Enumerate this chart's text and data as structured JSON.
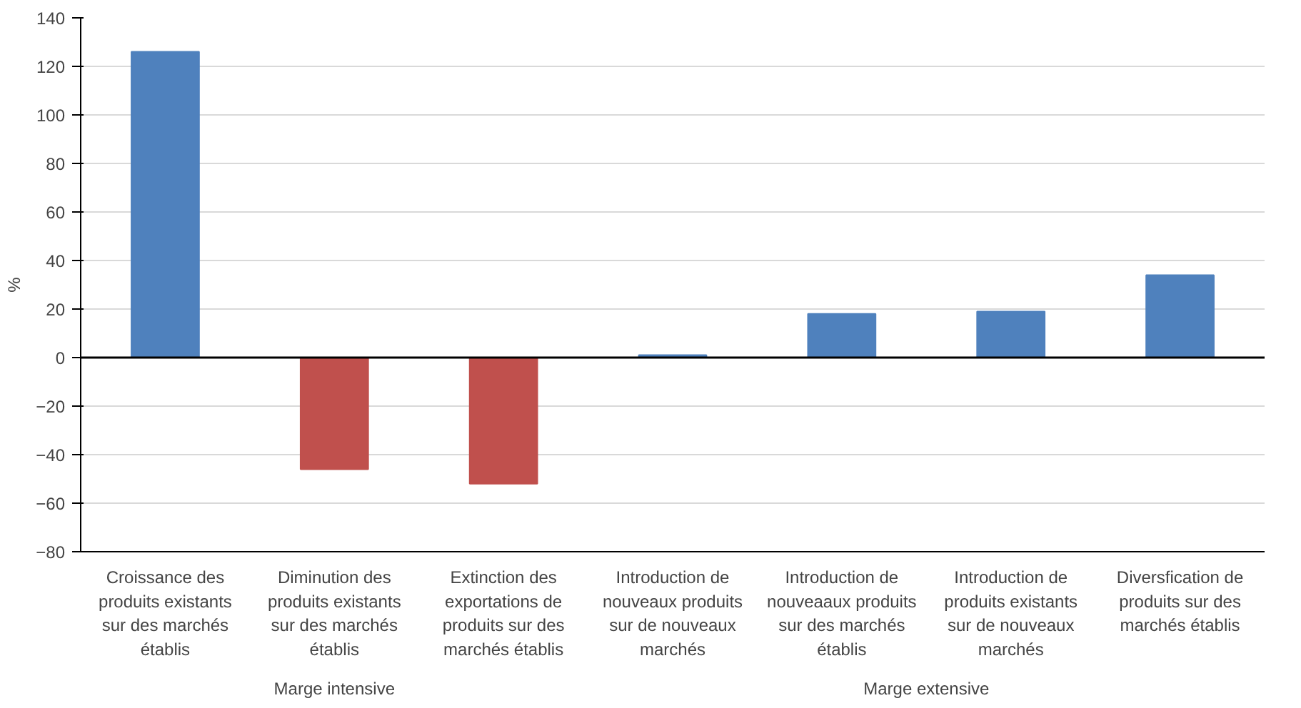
{
  "chart_data": {
    "type": "bar",
    "ylabel": "%",
    "categories": [
      "Croissance des produits existants sur des marchés établis",
      "Diminution des produits existants sur des marchés établis",
      "Extinction des exportations de produits sur des marchés établis",
      "Introduction de nouveaux produits sur de nouveaux marchés",
      "Introduction de nouveaaux produits sur des marchés établis",
      "Introduction de produits existants sur de nouveaux marchés",
      "Diversfication de produits sur des marchés établis"
    ],
    "values": [
      126,
      -46,
      -52,
      1,
      18,
      19,
      34
    ],
    "colors": [
      "#4f81bd",
      "#c0504d",
      "#c0504d",
      "#4f81bd",
      "#4f81bd",
      "#4f81bd",
      "#4f81bd"
    ],
    "annotations": [
      "Marge intensive",
      "Marge extensive"
    ],
    "ylim": [
      -80,
      140
    ],
    "yticks": [
      -80,
      -60,
      -40,
      -20,
      0,
      20,
      40,
      60,
      80,
      100,
      120,
      140
    ],
    "grid": "y"
  }
}
